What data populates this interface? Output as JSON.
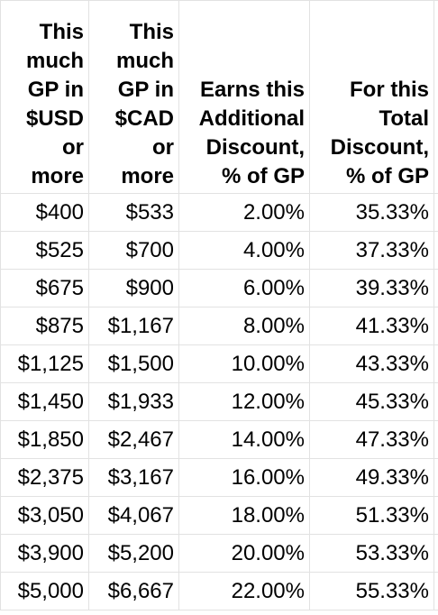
{
  "table": {
    "header": [
      [
        "This",
        "much",
        "GP in",
        "$USD",
        "or",
        "more"
      ],
      [
        "This",
        "much",
        "GP in",
        "$CAD",
        "or",
        "more"
      ],
      [
        "Earns this",
        "Additional",
        "Discount,",
        "% of GP"
      ],
      [
        "For this",
        "Total",
        "Discount,",
        "% of GP"
      ]
    ],
    "rows": [
      [
        "$400",
        "$533",
        "2.00%",
        "35.33%"
      ],
      [
        "$525",
        "$700",
        "4.00%",
        "37.33%"
      ],
      [
        "$675",
        "$900",
        "6.00%",
        "39.33%"
      ],
      [
        "$875",
        "$1,167",
        "8.00%",
        "41.33%"
      ],
      [
        "$1,125",
        "$1,500",
        "10.00%",
        "43.33%"
      ],
      [
        "$1,450",
        "$1,933",
        "12.00%",
        "45.33%"
      ],
      [
        "$1,850",
        "$2,467",
        "14.00%",
        "47.33%"
      ],
      [
        "$2,375",
        "$3,167",
        "16.00%",
        "49.33%"
      ],
      [
        "$3,050",
        "$4,067",
        "18.00%",
        "51.33%"
      ],
      [
        "$3,900",
        "$5,200",
        "20.00%",
        "53.33%"
      ],
      [
        "$5,000",
        "$6,667",
        "22.00%",
        "55.33%"
      ]
    ]
  }
}
